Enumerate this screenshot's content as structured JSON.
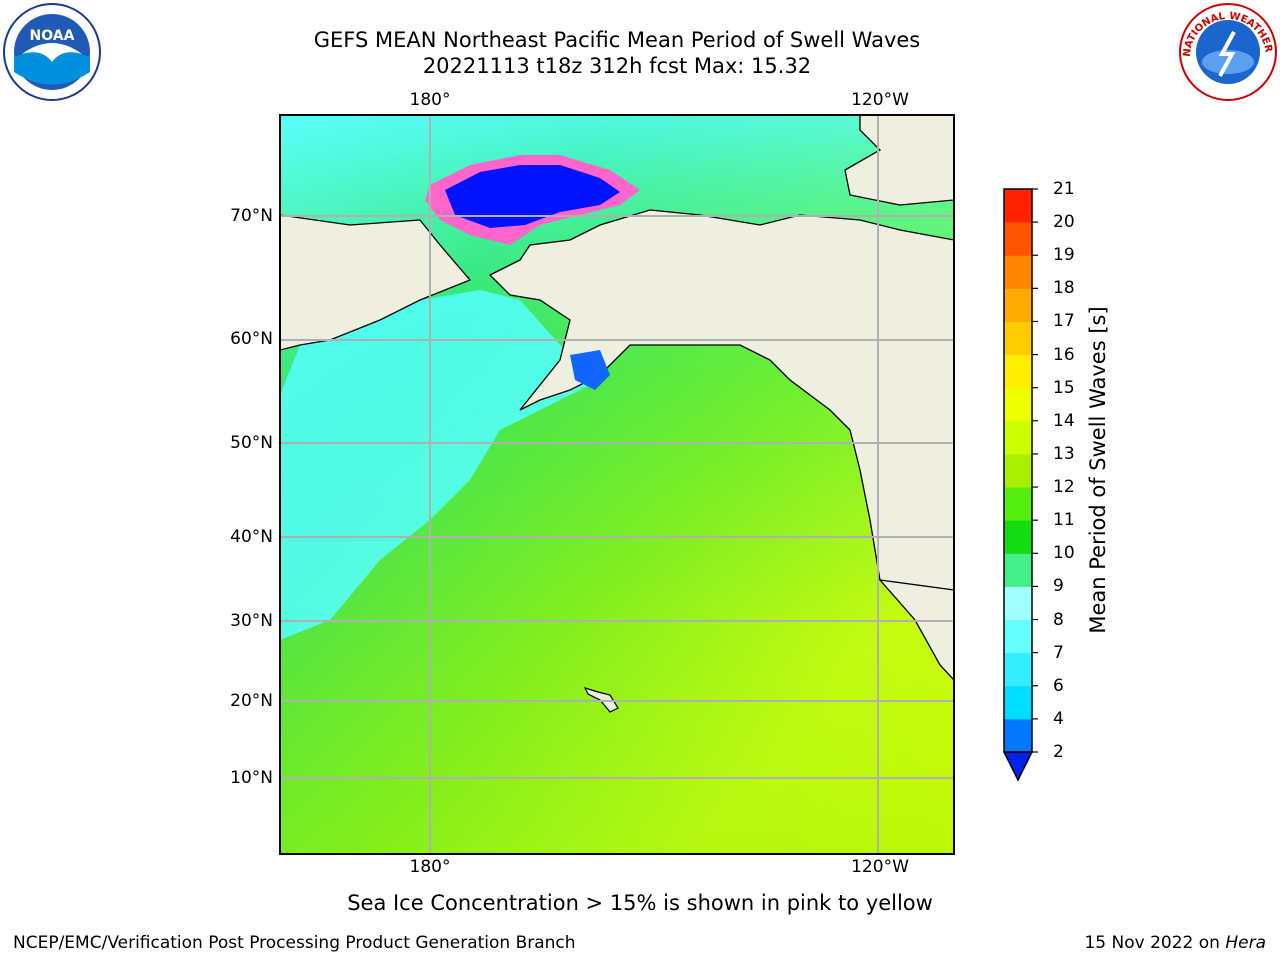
{
  "title_line1": "GEFS MEAN Northeast Pacific Mean Period of Swell Waves",
  "title_line2": "20221113 t18z 312h fcst   Max: 15.32",
  "lon_labels": [
    "180°",
    "120°W"
  ],
  "lat_labels": [
    "70°N",
    "60°N",
    "50°N",
    "40°N",
    "30°N",
    "20°N",
    "10°N"
  ],
  "colorbar": {
    "title": "Mean Period of Swell Waves [s]",
    "ticks": [
      "2",
      "4",
      "6",
      "7",
      "8",
      "9",
      "10",
      "11",
      "12",
      "13",
      "14",
      "15",
      "16",
      "17",
      "18",
      "19",
      "20",
      "21"
    ],
    "colors": [
      "#0022ee",
      "#0077ff",
      "#00ddff",
      "#33eeff",
      "#66ffff",
      "#a0ffff",
      "#44ee88",
      "#11dd11",
      "#55ee11",
      "#aaee00",
      "#ccff00",
      "#eeff00",
      "#ffee00",
      "#ffcc00",
      "#ffaa00",
      "#ff8800",
      "#ff5500",
      "#ff2200",
      "#ff0000"
    ],
    "extend": "min"
  },
  "caption": "Sea Ice Concentration > 15% is shown in pink to yellow",
  "footer_left": "NCEP/EMC/Verification Post Processing Product Generation Branch",
  "footer_date": "15 Nov 2022 on ",
  "footer_host": "Hera",
  "colors": {
    "land": "#efefdf",
    "coast": "#000000",
    "grid": "#b0b0b0",
    "ice": "#ff66cc"
  },
  "logos": {
    "noaa_text": "NOAA",
    "nws_text": "NATIONAL WEATHER SERVICE"
  }
}
